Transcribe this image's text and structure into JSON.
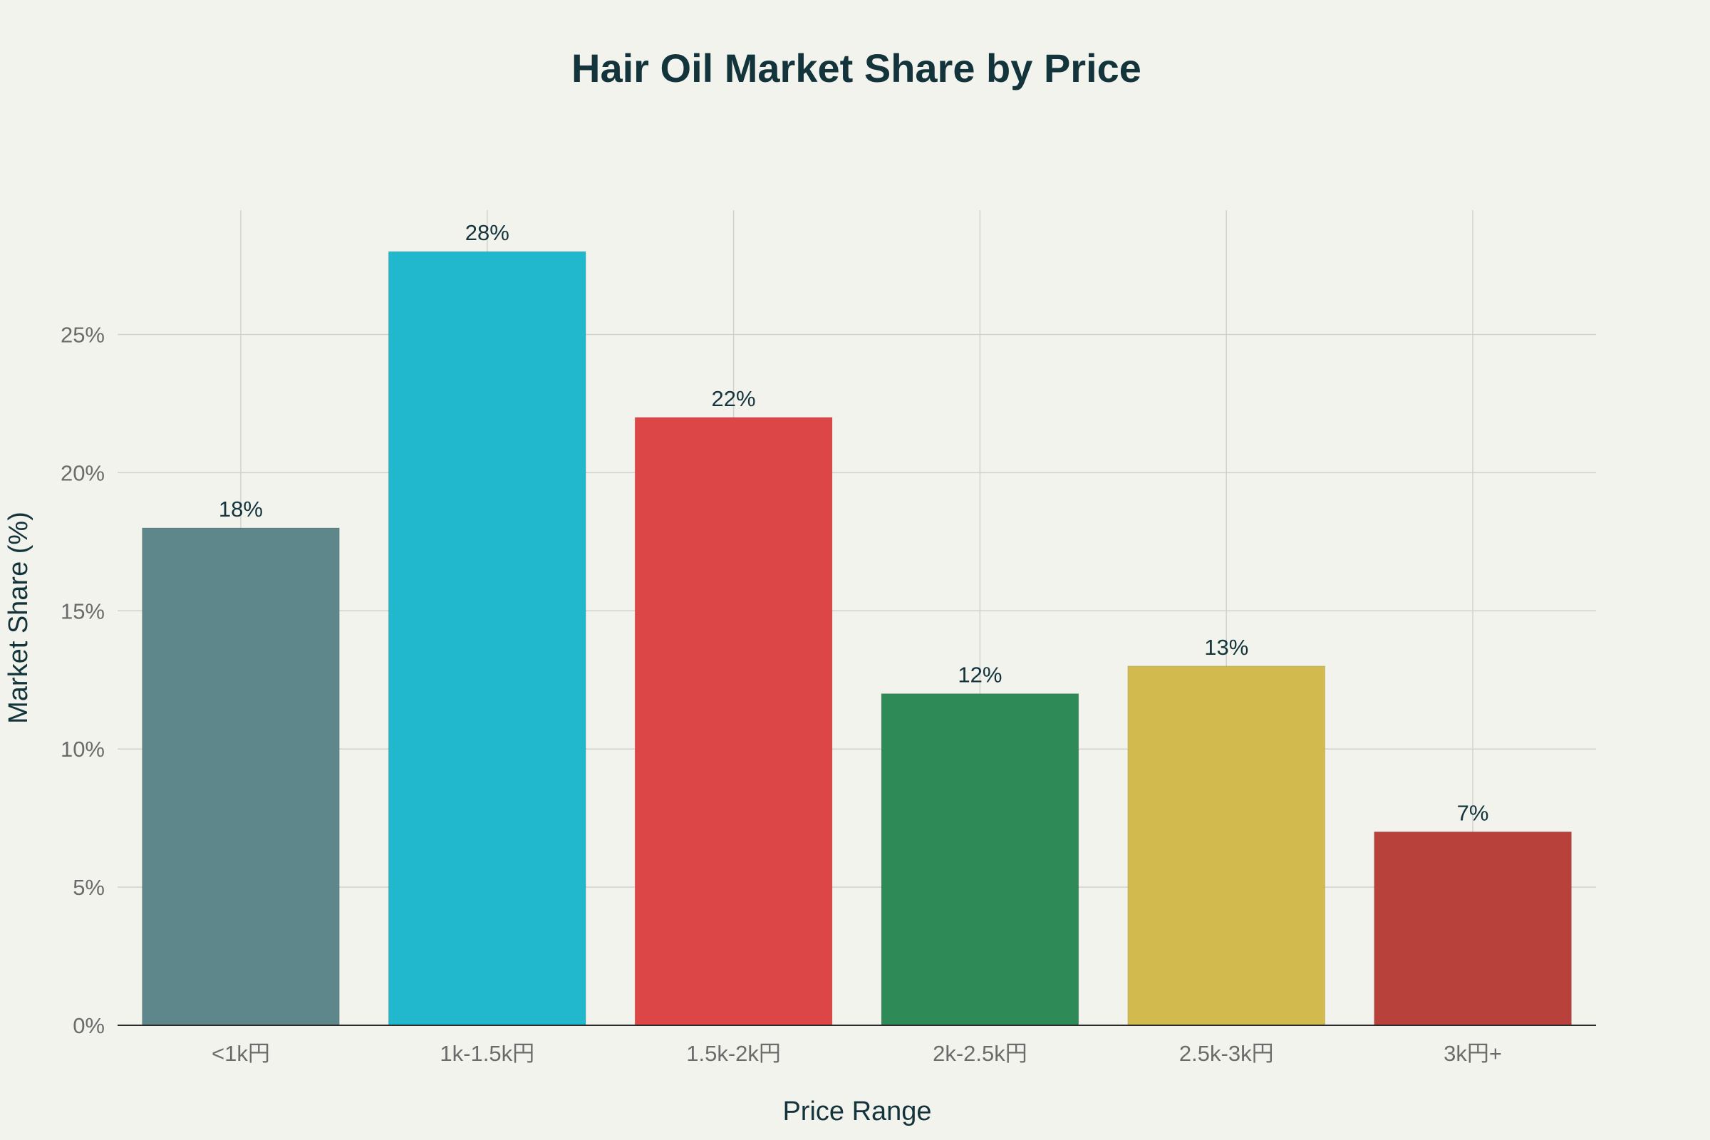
{
  "chart_data": {
    "type": "bar",
    "title": "Hair Oil Market Share by Price",
    "xlabel": "Price Range",
    "ylabel": "Market Share (%)",
    "categories": [
      "<1k円",
      "1k-1.5k円",
      "1.5k-2k円",
      "2k-2.5k円",
      "2.5k-3k円",
      "3k円+"
    ],
    "values": [
      18,
      28,
      22,
      12,
      13,
      7
    ],
    "data_labels": [
      "18%",
      "28%",
      "22%",
      "12%",
      "13%",
      "7%"
    ],
    "colors": [
      "#5d878b",
      "#21b8cd",
      "#dc4646",
      "#2e8a57",
      "#d3ba4e",
      "#b8413c"
    ],
    "ylim": [
      0,
      29.5
    ],
    "yticks": [
      0,
      5,
      10,
      15,
      20,
      25
    ],
    "ytick_labels": [
      "0%",
      "5%",
      "10%",
      "15%",
      "20%",
      "25%"
    ],
    "grid": true,
    "legend": "none"
  }
}
